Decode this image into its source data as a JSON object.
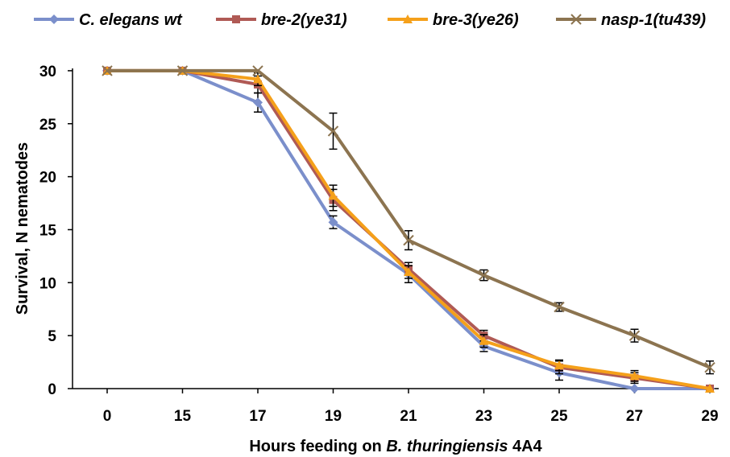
{
  "chart_data": {
    "type": "line",
    "categories": [
      "0",
      "15",
      "17",
      "19",
      "21",
      "23",
      "25",
      "27",
      "29"
    ],
    "ylim": [
      0,
      30
    ],
    "yticks": [
      0,
      5,
      10,
      15,
      20,
      25,
      30
    ],
    "ylabel": "Survival, N nematodes",
    "xlabel_parts": [
      "Hours feeding on ",
      "B. thuringiensis",
      " 4A4"
    ],
    "grid": false,
    "legend_position": "top",
    "series": [
      {
        "name": "C. elegans wt",
        "color": "#7b8fcb",
        "marker": "diamond",
        "values": [
          30,
          30,
          27,
          15.7,
          10.8,
          4,
          1.5,
          0,
          0
        ],
        "errors": [
          0,
          0,
          0.9,
          0.6,
          0.8,
          0.5,
          0.7,
          0,
          0
        ]
      },
      {
        "name": "bre-2(ye31)",
        "color": "#b05a55",
        "marker": "square",
        "values": [
          30,
          30,
          28.7,
          17.8,
          11.3,
          5,
          2,
          1,
          0
        ],
        "errors": [
          0,
          0,
          0.8,
          1.0,
          0.6,
          0.5,
          0.6,
          0.5,
          0
        ]
      },
      {
        "name": "bre-3(ye26)",
        "color": "#f5a01a",
        "marker": "triangle",
        "values": [
          30,
          30,
          29.2,
          18.2,
          11,
          4.5,
          2.2,
          1.2,
          0
        ],
        "errors": [
          0,
          0,
          0.6,
          1.0,
          0.6,
          0.6,
          0.5,
          0.5,
          0
        ]
      },
      {
        "name": "nasp-1(tu439)",
        "color": "#8c7450",
        "marker": "x",
        "values": [
          30,
          30,
          30,
          24.3,
          14,
          10.7,
          7.7,
          5,
          2
        ],
        "errors": [
          0,
          0,
          0,
          1.7,
          0.9,
          0.5,
          0.4,
          0.6,
          0.6
        ]
      }
    ]
  }
}
